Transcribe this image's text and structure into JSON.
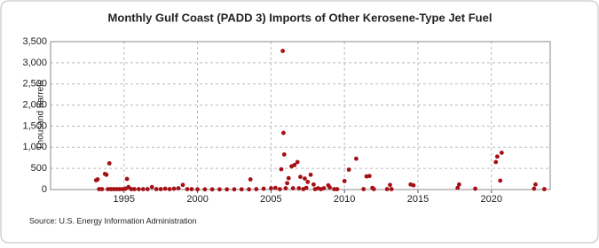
{
  "chart_data": {
    "type": "scatter",
    "title": "Monthly Gulf Coast (PADD 3) Imports of Other Kerosene-Type Jet Fuel",
    "y_label": "Thousand Barrels",
    "source": "Source: U.S. Energy Information Administration",
    "color": "#a50f15",
    "grid": true,
    "xlim": [
      1990,
      2024
    ],
    "xticks": [
      1995,
      2000,
      2005,
      2010,
      2015,
      2020
    ],
    "ylim": [
      0,
      3500
    ],
    "yticks": [
      0,
      500,
      {
        "value": 1000,
        "label": "1,000"
      },
      {
        "value": 1500,
        "label": "1,500"
      },
      {
        "value": 2000,
        "label": "2,000"
      },
      {
        "value": 2500,
        "label": "2,500"
      },
      {
        "value": 3000,
        "label": "3,000"
      },
      {
        "value": 3500,
        "label": "3,500"
      }
    ],
    "x": [
      1993.1,
      1993.2,
      1993.3,
      1993.5,
      1993.7,
      1993.8,
      1993.9,
      1994.0,
      1994.1,
      1994.3,
      1994.5,
      1994.7,
      1994.9,
      1995.1,
      1995.2,
      1995.3,
      1995.5,
      1995.7,
      1996.0,
      1996.3,
      1996.6,
      1996.9,
      1997.2,
      1997.5,
      1997.8,
      1998.1,
      1998.4,
      1998.7,
      1999.0,
      1999.3,
      1999.6,
      2000.0,
      2000.5,
      2001.0,
      2001.5,
      2002.0,
      2002.5,
      2003.0,
      2003.5,
      2003.6,
      2004.0,
      2004.5,
      2005.0,
      2005.3,
      2005.6,
      2005.7,
      2005.8,
      2005.85,
      2005.9,
      2006.0,
      2006.1,
      2006.2,
      2006.4,
      2006.5,
      2006.6,
      2006.8,
      2006.9,
      2007.0,
      2007.2,
      2007.3,
      2007.4,
      2007.5,
      2007.7,
      2007.9,
      2008.0,
      2008.2,
      2008.4,
      2008.6,
      2008.9,
      2009.0,
      2009.3,
      2009.5,
      2010.0,
      2010.3,
      2010.8,
      2011.3,
      2011.5,
      2011.7,
      2011.9,
      2012.0,
      2012.9,
      2013.1,
      2013.2,
      2014.5,
      2014.7,
      2017.7,
      2017.8,
      2018.9,
      2020.3,
      2020.4,
      2020.6,
      2020.7,
      2022.9,
      2023.0,
      2023.6
    ],
    "values": [
      220,
      240,
      10,
      10,
      370,
      350,
      10,
      620,
      10,
      10,
      10,
      10,
      10,
      20,
      250,
      60,
      10,
      10,
      10,
      10,
      10,
      60,
      10,
      10,
      20,
      10,
      20,
      30,
      110,
      10,
      10,
      5,
      5,
      5,
      5,
      5,
      5,
      5,
      5,
      240,
      10,
      20,
      30,
      40,
      10,
      480,
      3280,
      1340,
      830,
      30,
      150,
      270,
      550,
      30,
      580,
      650,
      30,
      300,
      10,
      260,
      40,
      180,
      350,
      120,
      10,
      30,
      10,
      30,
      100,
      50,
      10,
      10,
      200,
      470,
      730,
      10,
      310,
      320,
      40,
      10,
      10,
      110,
      10,
      120,
      100,
      40,
      120,
      20,
      650,
      780,
      210,
      870,
      20,
      120,
      10
    ]
  }
}
